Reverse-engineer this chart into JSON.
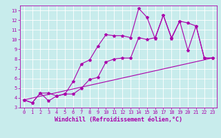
{
  "title": "",
  "xlabel": "Windchill (Refroidissement éolien,°C)",
  "ylabel": "",
  "bg_color": "#c8ecec",
  "line_color": "#aa00aa",
  "grid_color": "#ffffff",
  "xlim": [
    -0.5,
    23.5
  ],
  "ylim": [
    3,
    13.5
  ],
  "yticks": [
    3,
    4,
    5,
    6,
    7,
    8,
    9,
    10,
    11,
    12,
    13
  ],
  "xticks": [
    0,
    1,
    2,
    3,
    4,
    5,
    6,
    7,
    8,
    9,
    10,
    11,
    12,
    13,
    14,
    15,
    16,
    17,
    18,
    19,
    20,
    21,
    22,
    23
  ],
  "line1": {
    "x": [
      0,
      1,
      2,
      3,
      4,
      5,
      6,
      7,
      8,
      9,
      10,
      11,
      12,
      13,
      14,
      15,
      16,
      17,
      18,
      19,
      20,
      21,
      22,
      23
    ],
    "y": [
      3.8,
      3.5,
      4.5,
      3.7,
      4.2,
      4.4,
      5.7,
      7.5,
      7.9,
      9.3,
      10.5,
      10.4,
      10.4,
      10.2,
      13.2,
      12.3,
      10.1,
      12.5,
      10.1,
      11.9,
      8.9,
      11.4,
      8.1,
      8.1
    ]
  },
  "line2": {
    "x": [
      0,
      1,
      2,
      3,
      4,
      5,
      6,
      7,
      8,
      9,
      10,
      11,
      12,
      13,
      14,
      15,
      16,
      17,
      18,
      19,
      20,
      21,
      22,
      23
    ],
    "y": [
      3.8,
      3.5,
      4.5,
      4.5,
      4.2,
      4.4,
      4.4,
      5.0,
      5.9,
      6.1,
      7.7,
      8.0,
      8.1,
      8.1,
      10.2,
      10.0,
      10.2,
      12.5,
      10.2,
      11.9,
      11.7,
      11.4,
      8.1,
      8.1
    ]
  },
  "line3": {
    "x": [
      0,
      23
    ],
    "y": [
      3.8,
      8.1
    ]
  },
  "figsize": [
    3.2,
    2.0
  ],
  "dpi": 100,
  "tick_fontsize": 5,
  "label_fontsize": 6
}
